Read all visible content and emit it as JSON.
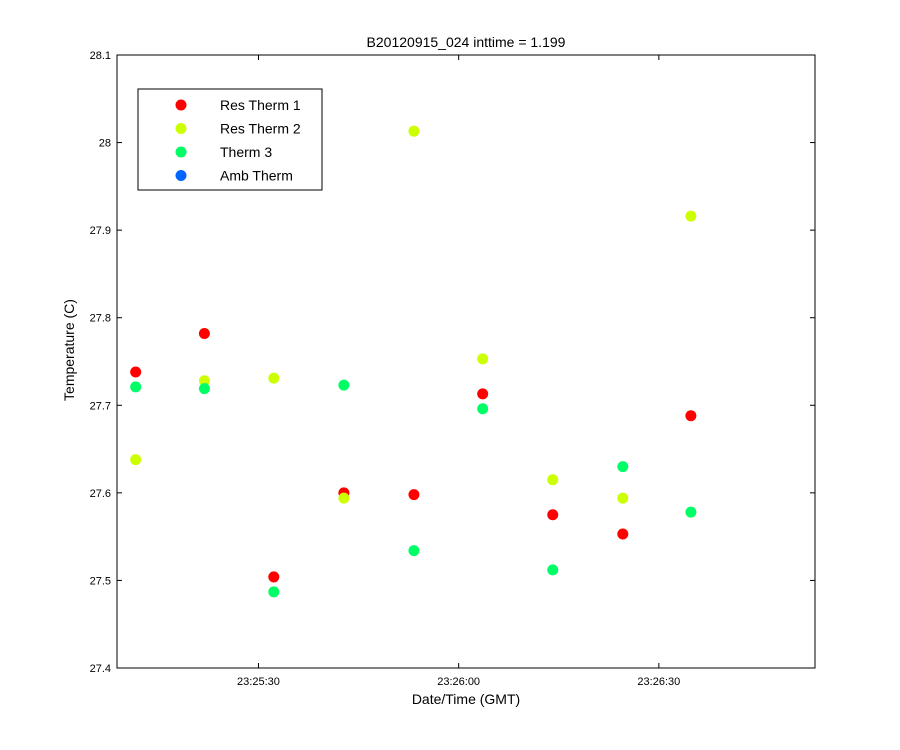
{
  "chart_data": {
    "type": "scatter",
    "title": "B20120915_024 inttime = 1.199",
    "xlabel": "Date/Time (GMT)",
    "ylabel": "Temperature (C)",
    "x_ticks": [
      "23:25:30",
      "23:26:00",
      "23:26:30"
    ],
    "x_tick_seconds": [
      30,
      60,
      90
    ],
    "x_range_seconds": [
      8.8,
      113.4
    ],
    "ylim": [
      27.4,
      28.1
    ],
    "y_ticks": [
      "27.4",
      "27.5",
      "27.6",
      "27.7",
      "27.8",
      "27.9",
      "28",
      "28.1"
    ],
    "legend_position": "top-left",
    "series": [
      {
        "name": "Res Therm 1",
        "color": "#ff0000",
        "x": [
          11.6,
          21.9,
          32.3,
          42.8,
          53.3,
          63.6,
          74.1,
          84.6,
          94.8
        ],
        "y": [
          27.738,
          27.782,
          27.504,
          27.6,
          27.598,
          27.713,
          27.575,
          27.553,
          27.688
        ]
      },
      {
        "name": "Res Therm 2",
        "color": "#ccff00",
        "x": [
          11.6,
          21.9,
          32.3,
          42.8,
          53.3,
          63.6,
          74.1,
          84.6,
          94.8
        ],
        "y": [
          27.638,
          27.728,
          27.731,
          27.594,
          28.013,
          27.753,
          27.615,
          27.594,
          27.916
        ]
      },
      {
        "name": "Therm 3",
        "color": "#00ff66",
        "x": [
          11.6,
          21.9,
          32.3,
          42.8,
          53.3,
          63.6,
          74.1,
          84.6,
          94.8
        ],
        "y": [
          27.721,
          27.719,
          27.487,
          27.723,
          27.534,
          27.696,
          27.512,
          27.63,
          27.578
        ]
      },
      {
        "name": "Amb Therm",
        "color": "#0066ff",
        "x": [],
        "y": []
      }
    ]
  }
}
